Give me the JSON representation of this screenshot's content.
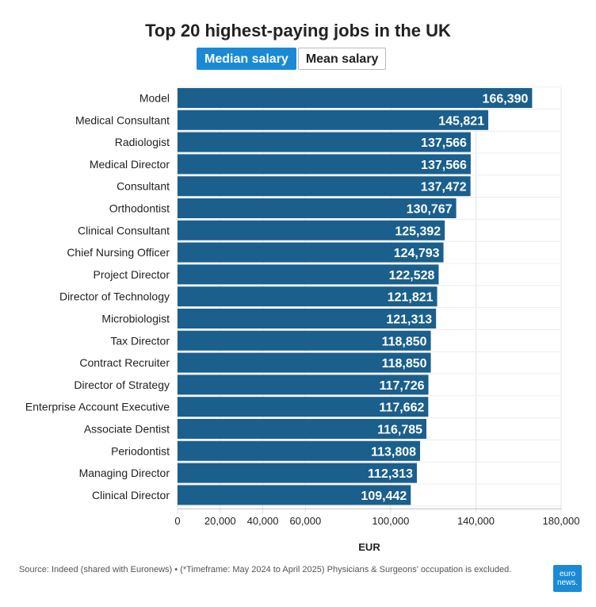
{
  "header": {
    "title": "Top 20 highest-paying jobs in the UK",
    "tabs": [
      {
        "label": "Median salary",
        "active": true
      },
      {
        "label": "Mean salary",
        "active": false
      }
    ]
  },
  "chart_data": {
    "type": "bar",
    "orientation": "horizontal",
    "categories": [
      "Model",
      "Medical Consultant",
      "Radiologist",
      "Medical Director",
      "Consultant",
      "Orthodontist",
      "Clinical Consultant",
      "Chief Nursing Officer",
      "Project Director",
      "Director of Technology",
      "Microbiologist",
      "Tax Director",
      "Contract Recruiter",
      "Director of Strategy",
      "Enterprise Account Executive",
      "Associate Dentist",
      "Periodontist",
      "Managing Director",
      "Clinical Director"
    ],
    "values": [
      166390,
      145821,
      137566,
      137566,
      137472,
      130767,
      125392,
      124793,
      122528,
      121821,
      121313,
      118850,
      118850,
      117726,
      117662,
      116785,
      113808,
      112313,
      109442
    ],
    "value_labels": [
      "166,390",
      "145,821",
      "137,566",
      "137,566",
      "137,472",
      "130,767",
      "125,392",
      "124,793",
      "122,528",
      "121,821",
      "121,313",
      "118,850",
      "118,850",
      "117,726",
      "117,662",
      "116,785",
      "113,808",
      "112,313",
      "109,442"
    ],
    "xlabel": "EUR",
    "xlim": [
      0,
      180000
    ],
    "xticks": [
      {
        "value": 0,
        "label": "0"
      },
      {
        "value": 20000,
        "label": "20,000"
      },
      {
        "value": 40000,
        "label": "40,000"
      },
      {
        "value": 60000,
        "label": "60,000"
      },
      {
        "value": 100000,
        "label": "100,000"
      },
      {
        "value": 140000,
        "label": "140,000"
      },
      {
        "value": 180000,
        "label": "180,000"
      }
    ],
    "bar_color": "#1b5f8c",
    "grid": true
  },
  "footer": {
    "source": "Source: Indeed (shared with Euronews) • (*Timeframe: May 2024 to April 2025) Physicians & Surgeons' occupation is excluded.",
    "logo_line1": "euro",
    "logo_line2": "news."
  }
}
